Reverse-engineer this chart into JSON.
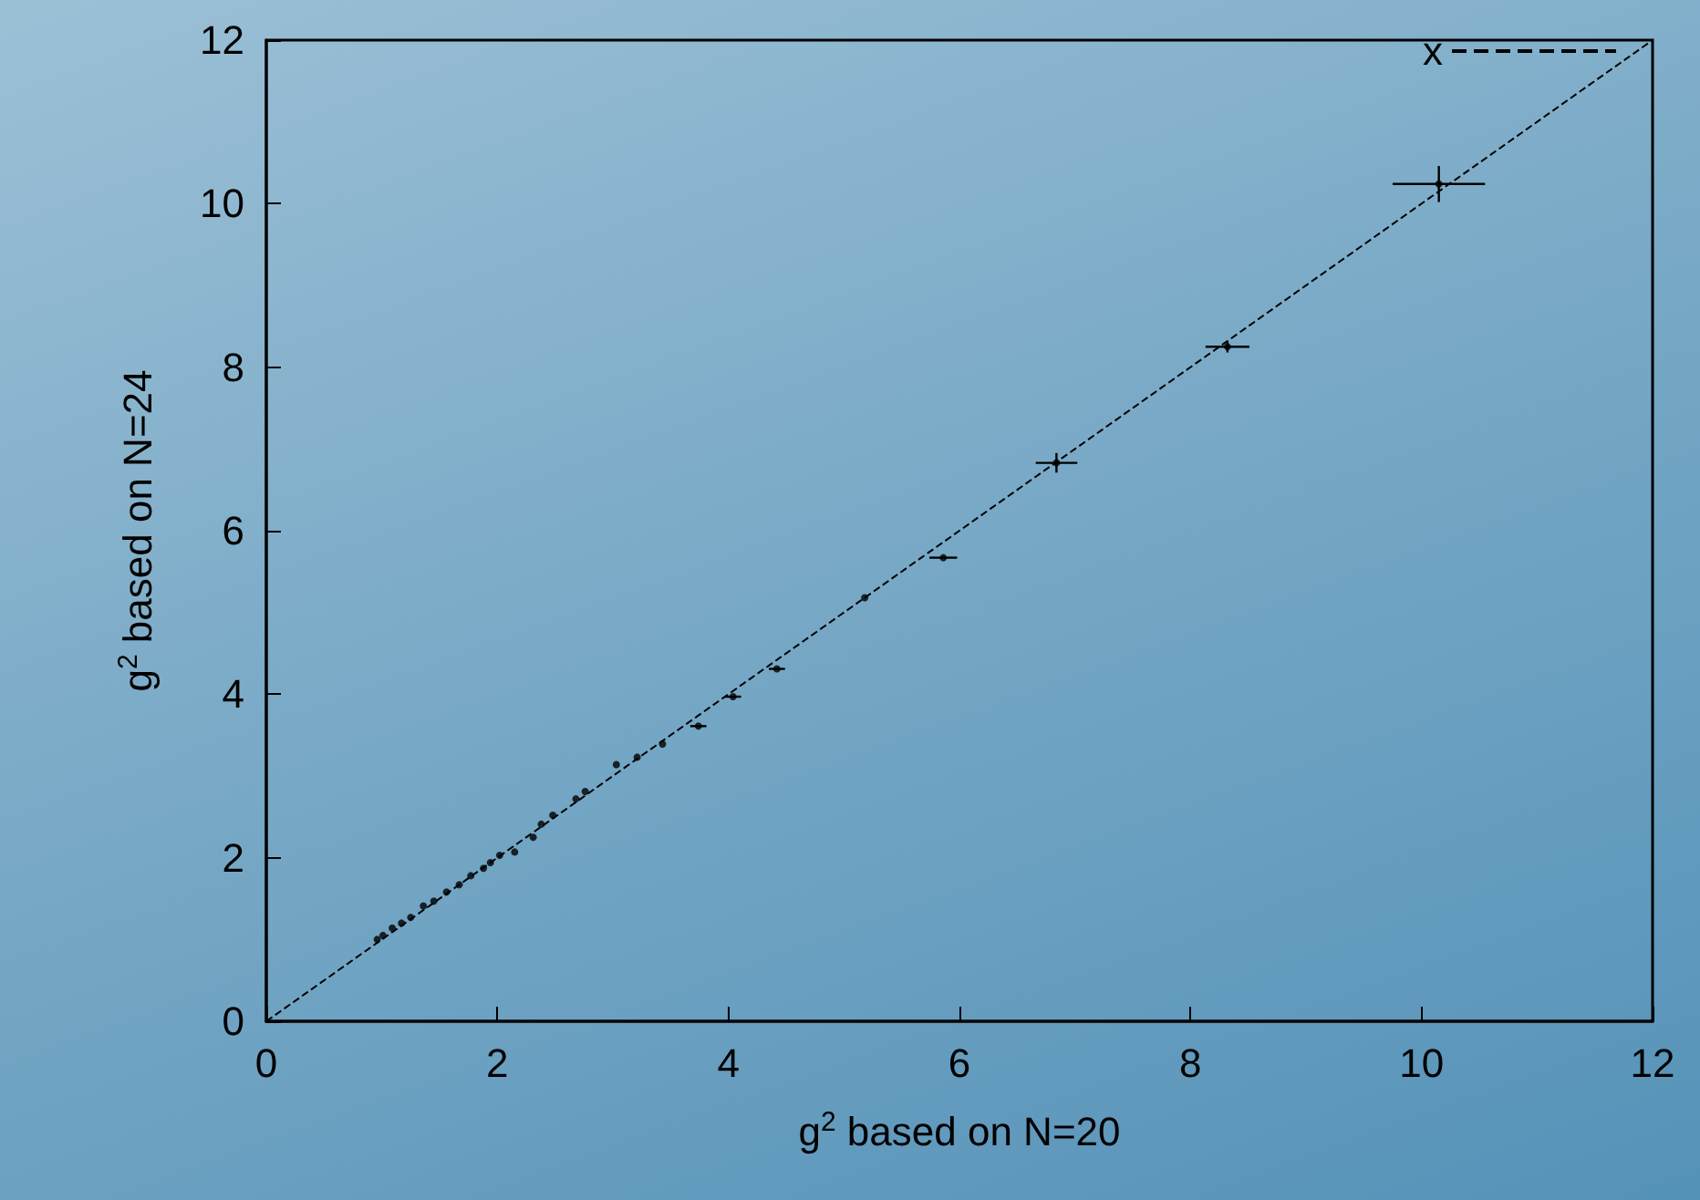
{
  "chart_data": {
    "type": "scatter",
    "xlabel": "g$^{2}$ based on N=20",
    "ylabel": "g$^{2}$ based on N=24",
    "xlim": [
      0,
      12
    ],
    "xticks": [
      0,
      2,
      4,
      6,
      8,
      10,
      12
    ],
    "ylim": [
      0,
      12
    ],
    "yticks": [
      0,
      2,
      4,
      6,
      8,
      10,
      12
    ],
    "grid": false,
    "legend": "top right",
    "marker": "circle",
    "series": [
      {
        "type": "scatter",
        "color": "#000000",
        "x": [
          10.15,
          8.32,
          6.84,
          5.86,
          5.18,
          4.42,
          4.04,
          3.74,
          3.43,
          3.21,
          3.03,
          2.76,
          2.68,
          2.48,
          2.38,
          2.31,
          2.15,
          2.02,
          1.94,
          1.88,
          1.77,
          1.67,
          1.56,
          1.45,
          1.36,
          1.25,
          1.17,
          1.09,
          1.01,
          0.96
        ],
        "values": [
          10.24,
          8.25,
          6.83,
          5.67,
          5.18,
          4.31,
          3.97,
          3.61,
          3.39,
          3.23,
          3.14,
          2.81,
          2.72,
          2.52,
          2.41,
          2.25,
          2.07,
          2.03,
          1.94,
          1.87,
          1.78,
          1.67,
          1.58,
          1.47,
          1.41,
          1.27,
          1.2,
          1.14,
          1.05,
          1.0
        ],
        "xerrors": [
          0.4,
          0.19,
          0.18,
          0.12,
          null,
          0.07,
          0.07,
          0.07,
          null,
          null,
          null,
          null,
          null,
          null,
          null,
          null,
          null,
          null,
          null,
          null,
          null,
          null,
          null,
          null,
          null,
          null,
          null,
          null,
          null,
          null
        ],
        "errors": [
          0.22,
          0.07,
          0.12,
          null,
          null,
          null,
          null,
          null,
          null,
          null,
          null,
          null,
          null,
          null,
          null,
          null,
          null,
          null,
          null,
          null,
          null,
          null,
          null,
          null,
          null,
          null,
          null,
          null,
          null,
          null
        ]
      },
      {
        "type": "line",
        "name": "x",
        "color": "#000000",
        "line_style": "dashed",
        "marker": "none",
        "x": [
          0,
          12
        ],
        "values": [
          0,
          12
        ]
      }
    ]
  }
}
